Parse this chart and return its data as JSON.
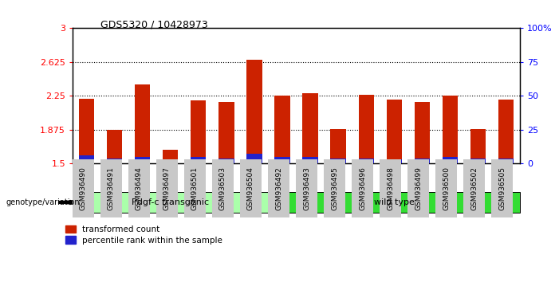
{
  "title": "GDS5320 / 10428973",
  "samples": [
    "GSM936490",
    "GSM936491",
    "GSM936494",
    "GSM936497",
    "GSM936501",
    "GSM936503",
    "GSM936504",
    "GSM936492",
    "GSM936493",
    "GSM936495",
    "GSM936496",
    "GSM936498",
    "GSM936499",
    "GSM936500",
    "GSM936502",
    "GSM936505"
  ],
  "transformed_count": [
    2.22,
    1.875,
    2.38,
    1.65,
    2.2,
    2.18,
    2.65,
    2.25,
    2.28,
    1.88,
    2.26,
    2.21,
    2.18,
    2.25,
    1.88,
    2.21
  ],
  "percentile_rank_pct": [
    6,
    4,
    5,
    3,
    5,
    4,
    7,
    5,
    5,
    4,
    4,
    3,
    4,
    5,
    4,
    4
  ],
  "groups": [
    {
      "label": "Pdgf-c transgenic",
      "start": 0,
      "end": 7,
      "color": "#aaffaa"
    },
    {
      "label": "wild type",
      "start": 7,
      "end": 16,
      "color": "#33dd33"
    }
  ],
  "ylim": [
    1.5,
    3.0
  ],
  "yticks": [
    1.5,
    1.875,
    2.25,
    2.625,
    3.0
  ],
  "ytick_labels": [
    "1.5",
    "1.875",
    "2.25",
    "2.625",
    "3"
  ],
  "right_yticks": [
    0,
    25,
    50,
    75,
    100
  ],
  "right_ytick_labels": [
    "0",
    "25",
    "50",
    "75",
    "100%"
  ],
  "bar_color_red": "#CC2200",
  "bar_color_blue": "#2222CC",
  "bar_width": 0.55,
  "tick_label_bg": "#C8C8C8"
}
